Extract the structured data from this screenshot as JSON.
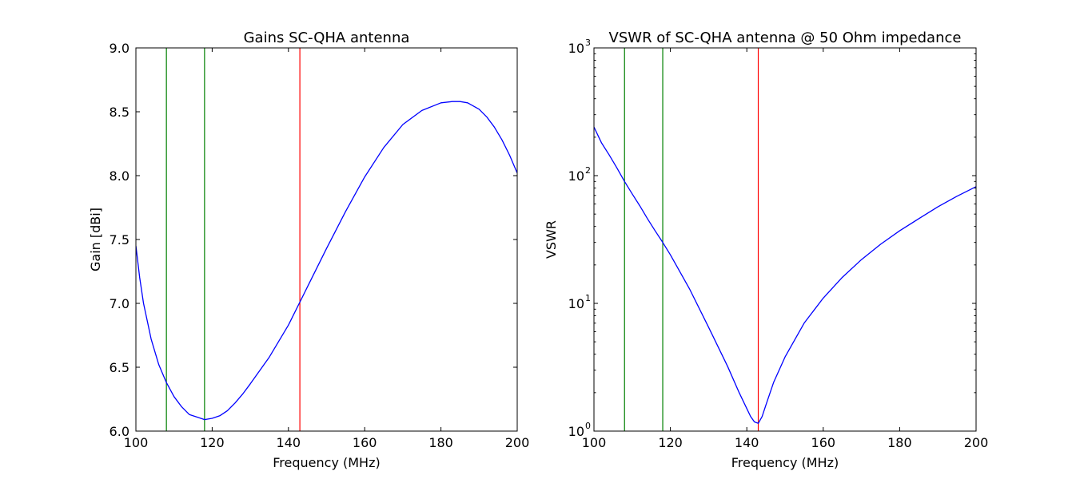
{
  "chart_data": [
    {
      "type": "line",
      "title": "Gains SC-QHA antenna",
      "xlabel": "Frequency (MHz)",
      "ylabel": "Gain [dBi]",
      "xlim": [
        100,
        200
      ],
      "ylim": [
        6.0,
        9.0
      ],
      "yscale": "linear",
      "grid": false,
      "xticks": [
        "100",
        "120",
        "140",
        "160",
        "180",
        "200"
      ],
      "yticks": [
        "6.0",
        "6.5",
        "7.0",
        "7.5",
        "8.0",
        "8.5",
        "9.0"
      ],
      "series": [
        {
          "color": "#0000ff",
          "x": [
            100,
            101,
            102,
            104,
            106,
            108,
            110,
            112,
            114,
            116,
            118,
            120,
            122,
            124,
            126,
            128,
            130,
            135,
            140,
            145,
            150,
            155,
            160,
            165,
            170,
            175,
            180,
            183,
            185,
            187,
            190,
            192,
            194,
            196,
            198,
            200
          ],
          "y": [
            7.45,
            7.2,
            7.0,
            6.72,
            6.52,
            6.38,
            6.27,
            6.19,
            6.13,
            6.11,
            6.09,
            6.1,
            6.12,
            6.16,
            6.22,
            6.29,
            6.37,
            6.58,
            6.83,
            7.13,
            7.43,
            7.72,
            7.99,
            8.22,
            8.4,
            8.51,
            8.57,
            8.58,
            8.58,
            8.57,
            8.52,
            8.46,
            8.38,
            8.28,
            8.16,
            8.02
          ]
        }
      ],
      "vlines": [
        {
          "x": 108,
          "color": "#008000"
        },
        {
          "x": 118,
          "color": "#008000"
        },
        {
          "x": 143,
          "color": "#ff0000"
        }
      ]
    },
    {
      "type": "line",
      "title": "VSWR of SC-QHA antenna @ 50 Ohm impedance",
      "xlabel": "Frequency (MHz)",
      "ylabel": "VSWR",
      "xlim": [
        100,
        200
      ],
      "ylim": [
        1,
        1000
      ],
      "yscale": "log",
      "grid": false,
      "xticks": [
        "100",
        "120",
        "140",
        "160",
        "180",
        "200"
      ],
      "yticks": [
        {
          "base": "10",
          "exp": "0"
        },
        {
          "base": "10",
          "exp": "1"
        },
        {
          "base": "10",
          "exp": "2"
        },
        {
          "base": "10",
          "exp": "3"
        }
      ],
      "series": [
        {
          "color": "#0000ff",
          "x": [
            100,
            102,
            104,
            106,
            108,
            110,
            112,
            114,
            116,
            118,
            120,
            125,
            130,
            135,
            138,
            140,
            141,
            142,
            143,
            144,
            145,
            147,
            150,
            155,
            160,
            165,
            170,
            175,
            180,
            185,
            190,
            195,
            200
          ],
          "y": [
            240,
            180,
            145,
            115,
            90,
            72,
            58,
            46,
            37,
            30,
            24,
            13,
            6.5,
            3.2,
            2.0,
            1.5,
            1.3,
            1.18,
            1.15,
            1.3,
            1.6,
            2.4,
            3.8,
            7.0,
            11.0,
            16.0,
            22.0,
            29.0,
            37.0,
            46.0,
            57.0,
            69.0,
            82.0
          ]
        }
      ],
      "vlines": [
        {
          "x": 108,
          "color": "#008000"
        },
        {
          "x": 118,
          "color": "#008000"
        },
        {
          "x": 143,
          "color": "#ff0000"
        }
      ]
    }
  ]
}
